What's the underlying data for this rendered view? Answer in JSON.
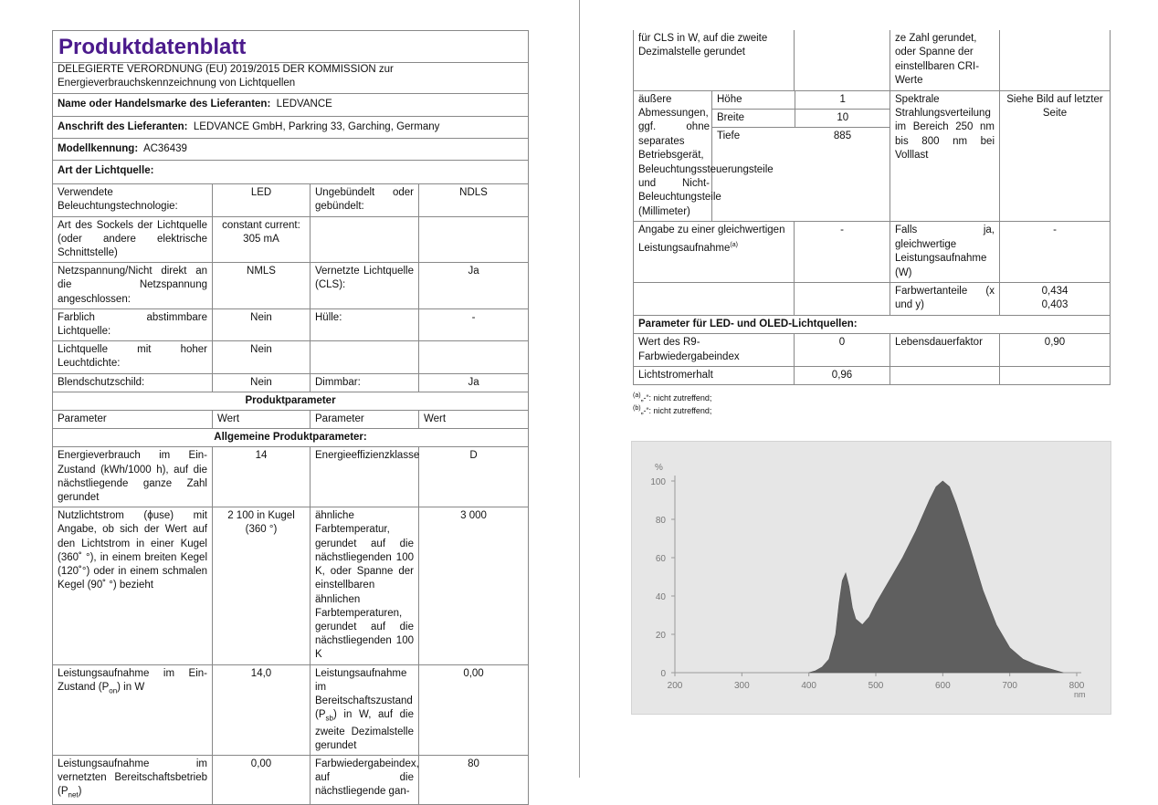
{
  "title": "Produktdatenblatt",
  "regulation": "DELEGIERTE VERORDNUNG (EU) 2019/2015 DER KOMMISSION zur Energieverbrauchskennzeichnung von Lichtquellen",
  "supplier": {
    "label": "Name oder Handelsmarke des Lieferanten:",
    "value": "LEDVANCE"
  },
  "address": {
    "label": "Anschrift des Lieferanten:",
    "value": "LEDVANCE GmbH, Parkring 33, Garching, Germany"
  },
  "model": {
    "label": "Modellkennung:",
    "value": "AC36439"
  },
  "light_source_type_label": "Art der Lichtquelle:",
  "type_rows": [
    {
      "p1": "Verwendete Beleuchtungstechnologie:",
      "v1": "LED",
      "p2": "Ungebündelt oder gebündelt:",
      "v2": "NDLS"
    },
    {
      "p1": "Art des Sockels der Lichtquelle (oder andere elektrische Schnittstelle)",
      "v1": "constant current: 305 mA",
      "p2": "",
      "v2": ""
    },
    {
      "p1": "Netzspannung/Nicht direkt an die Netzspannung angeschlossen:",
      "v1": "NMLS",
      "p2": "Vernetzte Lichtquelle (CLS):",
      "v2": "Ja"
    },
    {
      "p1": "Farblich abstimmbare Lichtquelle:",
      "v1": "Nein",
      "p2": "Hülle:",
      "v2": "-"
    },
    {
      "p1": "Lichtquelle mit hoher Leuchtdichte:",
      "v1": "Nein",
      "p2": "",
      "v2": ""
    },
    {
      "p1": "Blendschutzschild:",
      "v1": "Nein",
      "p2": "Dimmbar:",
      "v2": "Ja"
    }
  ],
  "product_params_heading": "Produktparameter",
  "col_headers": [
    "Parameter",
    "Wert",
    "Parameter",
    "Wert"
  ],
  "general_params_heading": "Allgemeine Produktparameter:",
  "general_rows": [
    {
      "p1": "Energieverbrauch im Ein-Zustand (kWh/1000 h), auf die nächstliegende ganze Zahl gerundet",
      "v1": "14",
      "p2": "Energieeffizienzklasse",
      "v2": "D"
    },
    {
      "p1": "Nutzlichtstrom (ϕuse) mit Angabe, ob sich der Wert auf den Lichtstrom in einer Kugel (360˚ °), in einem breiten Kegel (120˚°) oder in einem schmalen Kegel (90˚ °) bezieht",
      "v1": "2 100 in Kugel (360 °)",
      "p2": "ähnliche Farbtemperatur, gerundet auf die nächstliegenden 100 K, oder Spanne der einstellbaren ähnlichen Farbtemperaturen, gerundet auf die nächstliegenden 100 K",
      "v2": "3 000"
    },
    {
      "p1a": "Leistungsaufnahme im Ein-Zustand (P",
      "p1sub": "on",
      "p1b": ") in W",
      "v1": "14,0",
      "p2a": "Leistungsaufnahme im Bereitschaftszustand (P",
      "p2sub": "sb",
      "p2b": ") in W, auf die zweite Dezimalstelle gerundet",
      "v2": "0,00"
    },
    {
      "p1a": "Leistungsaufnahme im vernetzten Bereitschaftsbetrieb (P",
      "p1sub": "net",
      "p1b": ")",
      "v1": "0,00",
      "p2": "Farbwiedergabeindex, auf die nächstliegende gan-",
      "v2": "80"
    }
  ],
  "right_page": {
    "cont_left": "für CLS in W, auf die zweite Dezimalstelle gerundet",
    "cont_right": "ze Zahl gerundet, oder Spanne der einstellbaren CRI-Werte",
    "dimensions_label": "äußere Abmessungen, ggf. ohne separates Betriebsgerät, Beleuchtungssteuerungsteile und Nicht-Beleuchtungsteile (Millimeter)",
    "dims": [
      {
        "label": "Höhe",
        "value": "1"
      },
      {
        "label": "Breite",
        "value": "10"
      },
      {
        "label": "Tiefe",
        "value": "885"
      }
    ],
    "spectral_label": "Spektrale Strahlungsverteilung im Bereich 250 nm bis 800 nm bei Volllast",
    "spectral_value": "Siehe Bild auf letzter Seite",
    "equiv_label": "Angabe zu einer gleichwertigen Leistungsaufnahme",
    "equiv_sup": "(a)",
    "equiv_value": "-",
    "ifyes_label": "Falls ja, gleichwertige Leistungsaufnahme (W)",
    "ifyes_value": "-",
    "chroma_label": "Farbwertanteile (x und y)",
    "chroma_x": "0,434",
    "chroma_y": "0,403",
    "led_heading": "Parameter für LED- und OLED-Lichtquellen:",
    "r9_label": "Wert des R9-Farbwiedergabeindex",
    "r9_value": "0",
    "life_label": "Lebensdauerfaktor",
    "life_value": "0,90",
    "maint_label": "Lichtstromerhalt",
    "maint_value": "0,96",
    "foot_a_mark": "(a)",
    "foot_a_text": "„-“: nicht zutreffend;",
    "foot_b_mark": "(b)",
    "foot_b_text": "„-“: nicht zutreffend;"
  },
  "chart_data": {
    "type": "area",
    "ylabel": "%",
    "xunit": "nm",
    "xlim": [
      200,
      800
    ],
    "ylim": [
      0,
      100
    ],
    "x_ticks": [
      "200",
      "300",
      "400",
      "500",
      "600",
      "700",
      "800"
    ],
    "y_ticks": [
      "0",
      "20",
      "40",
      "60",
      "80",
      "100"
    ],
    "fill_color": "#5f5f5f",
    "background": "#e6e6e6",
    "x": [
      400,
      410,
      420,
      430,
      440,
      445,
      450,
      455,
      460,
      465,
      470,
      480,
      490,
      500,
      520,
      540,
      560,
      580,
      590,
      600,
      610,
      620,
      640,
      660,
      680,
      700,
      720,
      740,
      760,
      780
    ],
    "values": [
      0,
      1,
      3,
      7,
      20,
      36,
      48,
      52,
      45,
      34,
      28,
      25,
      29,
      36,
      48,
      60,
      74,
      90,
      97,
      100,
      97,
      88,
      66,
      43,
      25,
      13,
      7,
      4,
      2,
      0
    ]
  }
}
